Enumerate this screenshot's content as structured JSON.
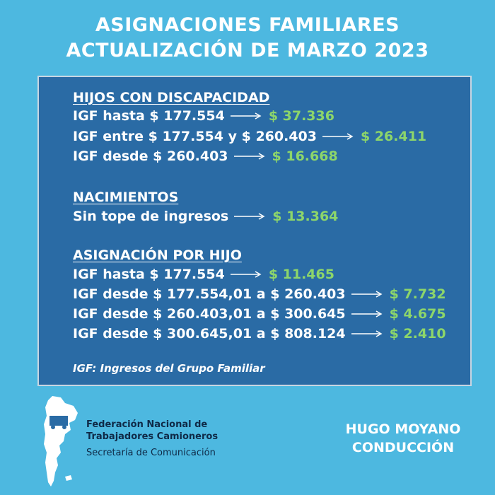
{
  "header": {
    "line1": "ASIGNACIONES FAMILIARES",
    "line2": "ACTUALIZACIÓN  DE MARZO 2023"
  },
  "sections": {
    "disability": {
      "title": "HIJOS CON DISCAPACIDAD",
      "rows": [
        {
          "label": "IGF hasta $ 177.554",
          "amount": "$ 37.336"
        },
        {
          "label": "IGF entre $ 177.554 y $ 260.403",
          "amount": "$ 26.411"
        },
        {
          "label": "IGF desde $ 260.403",
          "amount": "$ 16.668"
        }
      ]
    },
    "births": {
      "title": "NACIMIENTOS",
      "rows": [
        {
          "label": "Sin tope de ingresos",
          "amount": "$ 13.364"
        }
      ]
    },
    "per_child": {
      "title": "ASIGNACIÓN POR HIJO",
      "rows": [
        {
          "label": "IGF hasta $ 177.554",
          "amount": "$ 11.465"
        },
        {
          "label": "IGF desde $ 177.554,01 a $ 260.403",
          "amount": "$ 7.732"
        },
        {
          "label": "IGF desde $ 260.403,01 a $ 300.645",
          "amount": "$ 4.675"
        },
        {
          "label": "IGF desde $ 300.645,01 a $ 808.124",
          "amount": "$ 2.410"
        }
      ]
    }
  },
  "note": "IGF: Ingresos del Grupo Familiar",
  "org": {
    "name_line1": "Federación Nacional de",
    "name_line2": "Trabajadores Camioneros",
    "department": "Secretaría de Comunicación"
  },
  "signature": {
    "line1": "HUGO MOYANO",
    "line2": "CONDUCCIÓN"
  },
  "colors": {
    "background": "#4db8e0",
    "panel": "#2a6ba5",
    "amount": "#8dd66a"
  }
}
